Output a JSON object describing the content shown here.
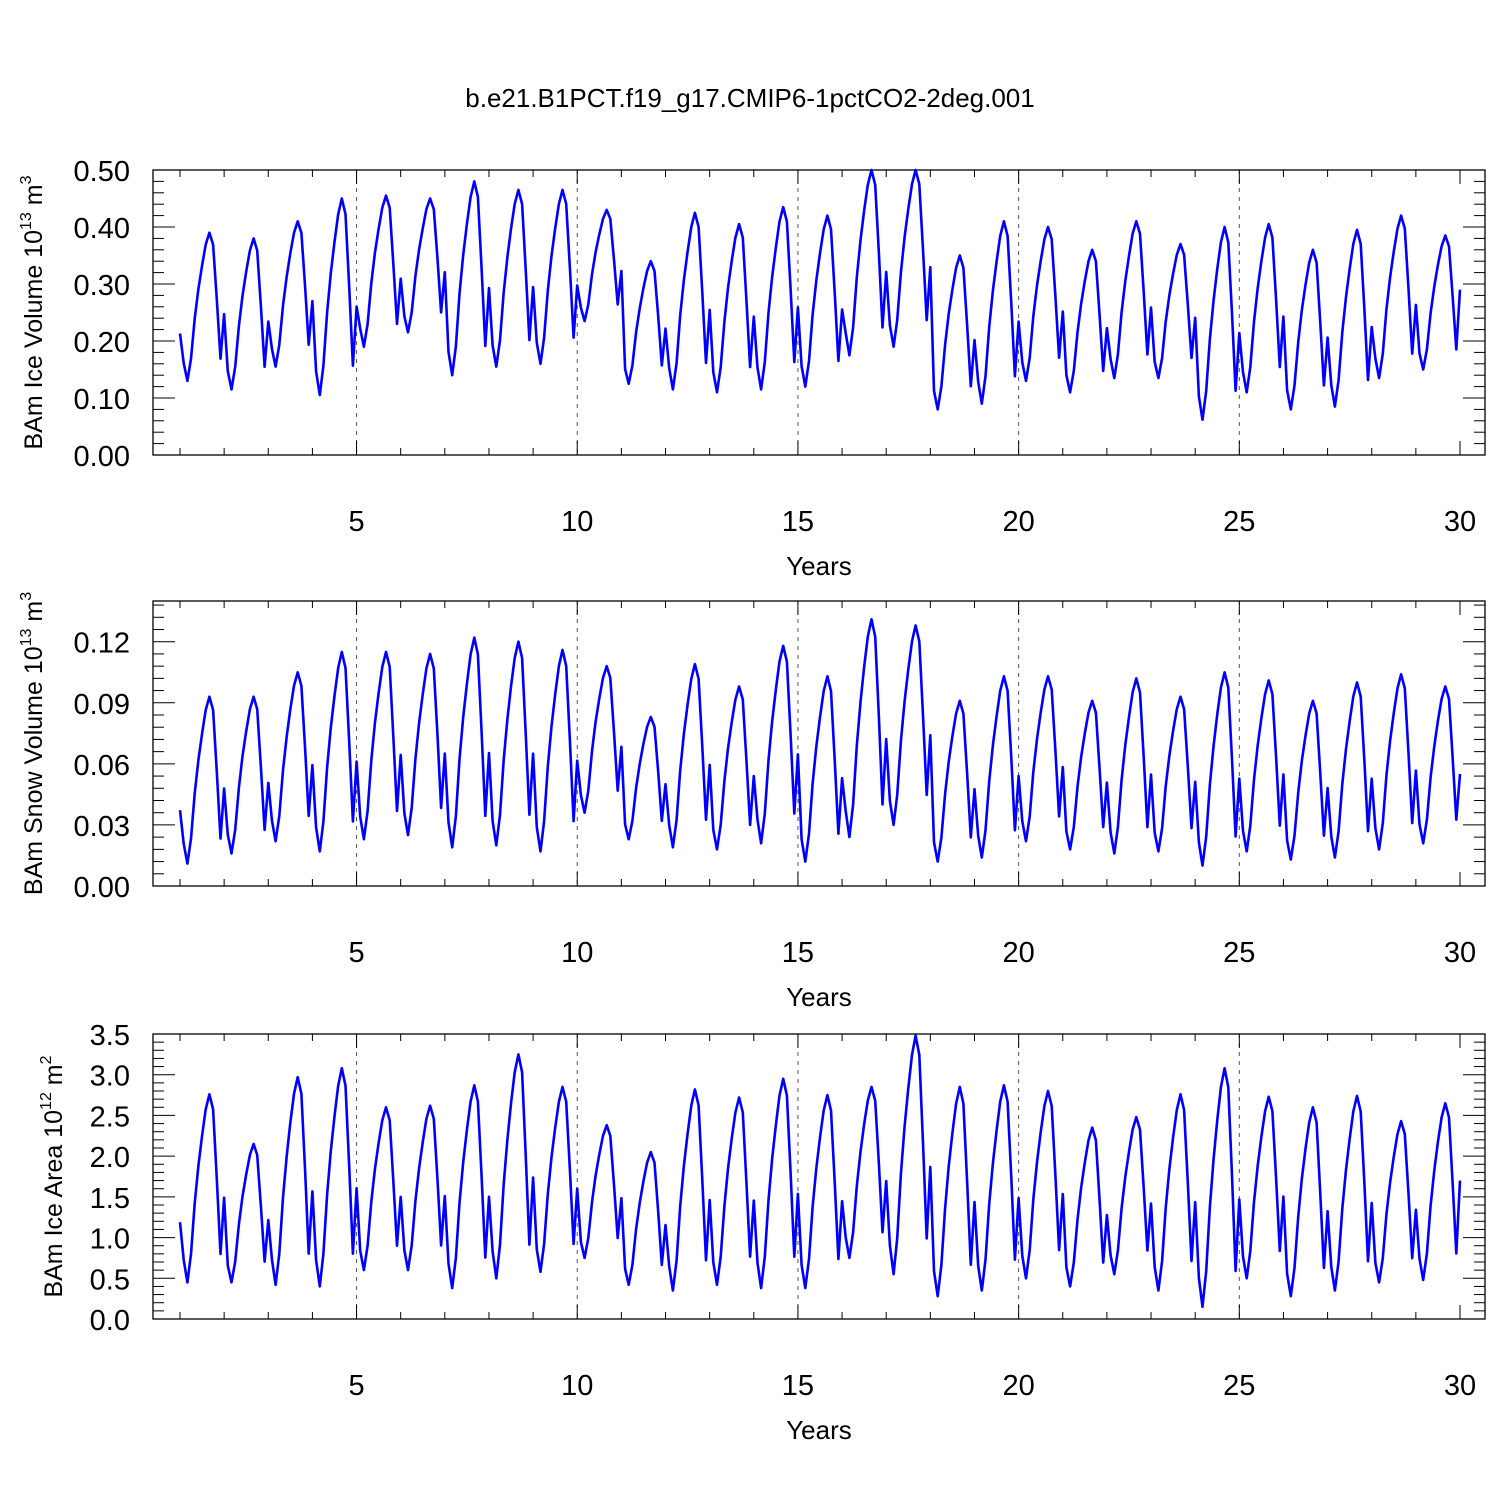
{
  "figure": {
    "title": "b.e21.B1PCT.f19_g17.CMIP6-1pctCO2-2deg.001"
  },
  "chart_data": [
    {
      "type": "line",
      "ylabel": {
        "main": "BAm Ice Volume 10",
        "exp": "13",
        "unit": " m",
        "unit_exp": "3"
      },
      "xlabel": "Years",
      "xlim": [
        1,
        30
      ],
      "ylim": [
        0,
        0.5
      ],
      "xticks": [
        5,
        10,
        15,
        20,
        25,
        30
      ],
      "xtick_labels": [
        "5",
        "10",
        "15",
        "20",
        "25",
        "30"
      ],
      "yticks": [
        0,
        0.1,
        0.2,
        0.3,
        0.4,
        0.5
      ],
      "ytick_labels": [
        "0.00",
        "0.10",
        "0.20",
        "0.30",
        "0.40",
        "0.50"
      ],
      "grid": "vertical dashed lines at x = 5, 10, 15, 20, 25",
      "line_color": "#0000ff",
      "points_per_year": 12,
      "annual_minima": [
        0.13,
        0.115,
        0.155,
        0.105,
        0.19,
        0.215,
        0.14,
        0.155,
        0.16,
        0.235,
        0.125,
        0.115,
        0.11,
        0.115,
        0.12,
        0.175,
        0.19,
        0.08,
        0.09,
        0.13,
        0.11,
        0.135,
        0.135,
        0.062,
        0.11,
        0.08,
        0.085,
        0.135,
        0.15
      ],
      "annual_maxima": [
        0.39,
        0.38,
        0.41,
        0.45,
        0.455,
        0.45,
        0.48,
        0.465,
        0.465,
        0.43,
        0.34,
        0.425,
        0.405,
        0.435,
        0.42,
        0.5,
        0.5,
        0.35,
        0.41,
        0.4,
        0.36,
        0.41,
        0.37,
        0.4,
        0.405,
        0.36,
        0.395,
        0.42,
        0.385
      ],
      "end_value": 0.29
    },
    {
      "type": "line",
      "ylabel": {
        "main": "BAm Snow Volume 10",
        "exp": "13",
        "unit": " m",
        "unit_exp": "3"
      },
      "xlabel": "Years",
      "xlim": [
        1,
        30
      ],
      "ylim": [
        0,
        0.14
      ],
      "xticks": [
        5,
        10,
        15,
        20,
        25,
        30
      ],
      "xtick_labels": [
        "5",
        "10",
        "15",
        "20",
        "25",
        "30"
      ],
      "yticks": [
        0,
        0.03,
        0.06,
        0.09,
        0.12
      ],
      "ytick_labels": [
        "0.00",
        "0.03",
        "0.06",
        "0.09",
        "0.12"
      ],
      "grid": "vertical dashed lines at x = 5, 10, 15, 20, 25",
      "line_color": "#0000ff",
      "points_per_year": 12,
      "annual_minima": [
        0.011,
        0.016,
        0.022,
        0.017,
        0.023,
        0.025,
        0.019,
        0.02,
        0.017,
        0.036,
        0.023,
        0.019,
        0.018,
        0.021,
        0.012,
        0.024,
        0.03,
        0.012,
        0.014,
        0.022,
        0.018,
        0.016,
        0.017,
        0.01,
        0.017,
        0.013,
        0.014,
        0.018,
        0.021
      ],
      "annual_maxima": [
        0.093,
        0.093,
        0.105,
        0.115,
        0.115,
        0.114,
        0.122,
        0.12,
        0.116,
        0.108,
        0.083,
        0.109,
        0.098,
        0.118,
        0.103,
        0.131,
        0.128,
        0.091,
        0.103,
        0.103,
        0.091,
        0.102,
        0.093,
        0.105,
        0.101,
        0.091,
        0.1,
        0.104,
        0.098
      ],
      "end_value": 0.055
    },
    {
      "type": "line",
      "ylabel": {
        "main": "BAm Ice Area 10",
        "exp": "12",
        "unit": " m",
        "unit_exp": "2"
      },
      "xlabel": "Years",
      "xlim": [
        1,
        30
      ],
      "ylim": [
        0,
        3.5
      ],
      "xticks": [
        5,
        10,
        15,
        20,
        25,
        30
      ],
      "xtick_labels": [
        "5",
        "10",
        "15",
        "20",
        "25",
        "30"
      ],
      "yticks": [
        0,
        0.5,
        1,
        1.5,
        2,
        2.5,
        3,
        3.5
      ],
      "ytick_labels": [
        "0.0",
        "0.5",
        "1.0",
        "1.5",
        "2.0",
        "2.5",
        "3.0",
        "3.5"
      ],
      "grid": "vertical dashed lines at x = 5, 10, 15, 20, 25",
      "line_color": "#0000ff",
      "points_per_year": 12,
      "annual_minima": [
        0.45,
        0.45,
        0.42,
        0.4,
        0.6,
        0.6,
        0.38,
        0.5,
        0.58,
        0.75,
        0.42,
        0.35,
        0.42,
        0.38,
        0.38,
        0.75,
        0.55,
        0.28,
        0.35,
        0.5,
        0.4,
        0.55,
        0.35,
        0.15,
        0.5,
        0.28,
        0.35,
        0.45,
        0.48
      ],
      "annual_maxima": [
        2.76,
        2.15,
        2.97,
        3.08,
        2.6,
        2.62,
        2.87,
        3.25,
        2.85,
        2.38,
        2.05,
        2.82,
        2.72,
        2.95,
        2.75,
        2.85,
        3.48,
        2.85,
        2.87,
        2.8,
        2.35,
        2.48,
        2.76,
        3.08,
        2.73,
        2.6,
        2.74,
        2.43,
        2.65
      ],
      "end_value": 1.7
    }
  ]
}
